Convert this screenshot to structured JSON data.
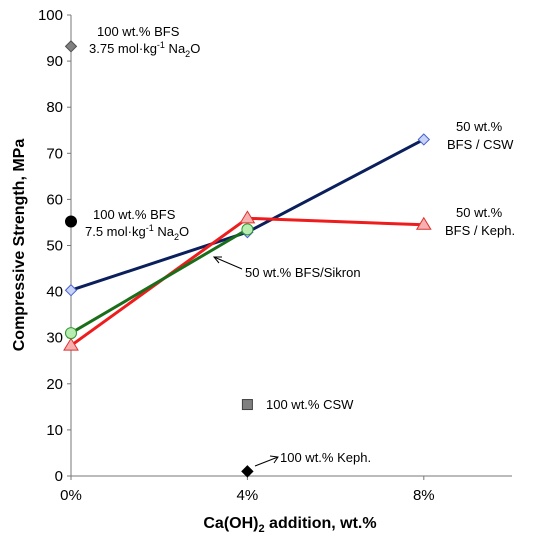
{
  "chart_data": {
    "type": "scatter",
    "xlabel": "Ca(OH)2 addition, wt.%",
    "ylabel": "Compressive Strength, MPa",
    "x_ticks": [
      "0%",
      "4%",
      "8%"
    ],
    "xlim": [
      0,
      10
    ],
    "ylim": [
      0,
      100
    ],
    "y_ticks": [
      0,
      10,
      20,
      30,
      40,
      50,
      60,
      70,
      80,
      90,
      100
    ],
    "grid": false,
    "series": [
      {
        "name": "50 wt.% BFS / CSW",
        "color": "#0a1f5c",
        "marker": "diamond",
        "marker_fill": "#c7d4f5",
        "marker_stroke": "#4a5fd0",
        "line": true,
        "x": [
          0,
          4,
          8
        ],
        "y": [
          40.3,
          52.9,
          73.0
        ]
      },
      {
        "name": "50 wt.% BFS / Keph.",
        "color": "#ee1c1c",
        "marker": "triangle",
        "marker_fill": "#f6b0b0",
        "marker_stroke": "#e03030",
        "line": true,
        "x": [
          0,
          4,
          8
        ],
        "y": [
          28.3,
          55.9,
          54.5
        ]
      },
      {
        "name": "50 wt.% BFS/Sikron",
        "color": "#1a6e1a",
        "marker": "circle",
        "marker_fill": "#b8ecb0",
        "marker_stroke": "#2f9a2f",
        "line": true,
        "x": [
          0,
          4
        ],
        "y": [
          31.0,
          53.5
        ]
      },
      {
        "name": "100 wt.% BFS, 3.75 mol·kg-1 Na2O",
        "color": "#808080",
        "marker": "diamond",
        "marker_fill": "#808080",
        "marker_stroke": "#505050",
        "line": false,
        "x": [
          0
        ],
        "y": [
          93.2
        ]
      },
      {
        "name": "100 wt.% BFS, 7.5 mol·kg-1 Na2O",
        "color": "#000000",
        "marker": "circle",
        "marker_fill": "#000000",
        "marker_stroke": "#000000",
        "line": false,
        "x": [
          0
        ],
        "y": [
          55.2
        ]
      },
      {
        "name": "100 wt.% CSW",
        "color": "#808080",
        "marker": "square",
        "marker_fill": "#808080",
        "marker_stroke": "#404040",
        "line": false,
        "x": [
          4
        ],
        "y": [
          15.5
        ]
      },
      {
        "name": "100 wt.% Keph.",
        "color": "#000000",
        "marker": "diamond",
        "marker_fill": "#000000",
        "marker_stroke": "#000000",
        "line": false,
        "x": [
          4
        ],
        "y": [
          1.0
        ]
      }
    ],
    "annotations": {
      "bfs375_line1": "100 wt.% BFS",
      "bfs375_line2": "3.75 mol·kg",
      "bfs375_sup": "-1",
      "bfs375_tail": " Na",
      "bfs375_sub": "2",
      "bfs375_end": "O",
      "bfs75_line1": "100 wt.% BFS",
      "bfs75_line2": "7.5 mol·kg",
      "bfs75_sup": "-1",
      "bfs75_tail": " Na",
      "bfs75_sub": "2",
      "bfs75_end": "O",
      "csw_line1": "50 wt.%",
      "csw_line2": "BFS / CSW",
      "keph_line1": "50 wt.%",
      "keph_line2": "BFS / Keph.",
      "sikron": "50 wt.% BFS/Sikron",
      "csw100": "100 wt.% CSW",
      "keph100": "100 wt.% Keph."
    },
    "xlabel_parts": {
      "a": "Ca(OH)",
      "sub": "2",
      "b": " addition, wt.%"
    }
  }
}
